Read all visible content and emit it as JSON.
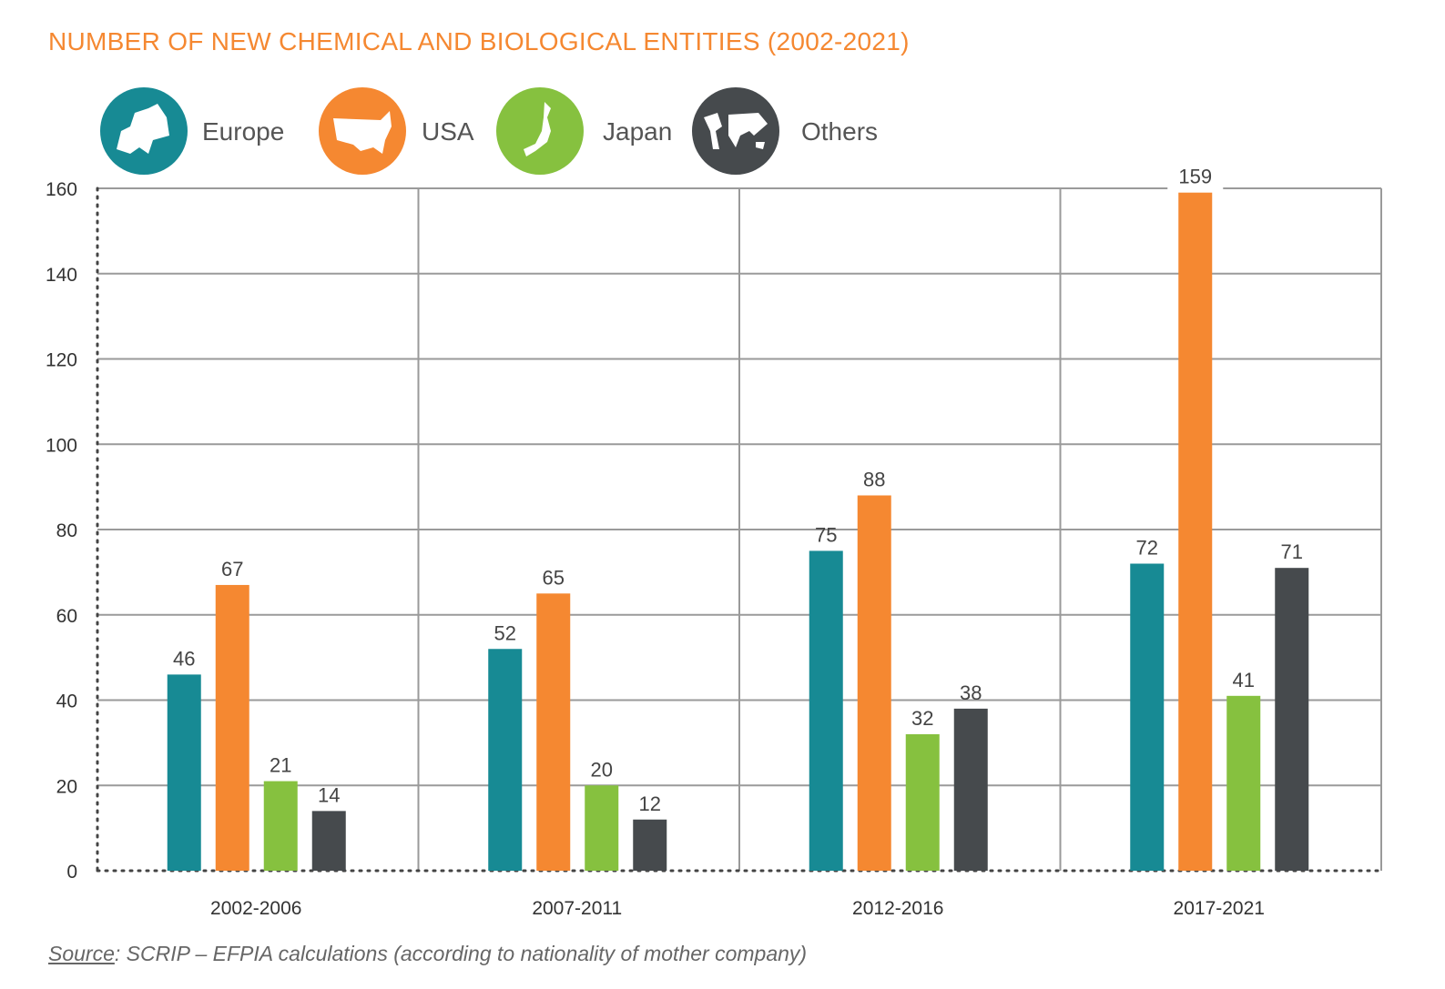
{
  "chart_data": {
    "type": "bar",
    "title": "NUMBER OF NEW CHEMICAL AND BIOLOGICAL ENTITIES (2002-2021)",
    "categories": [
      "2002-2006",
      "2007-2011",
      "2012-2016",
      "2017-2021"
    ],
    "series": [
      {
        "name": "Europe",
        "color": "#178a94",
        "icon": "europe-map-icon",
        "values": [
          46,
          52,
          75,
          72
        ]
      },
      {
        "name": "USA",
        "color": "#f58831",
        "icon": "usa-map-icon",
        "values": [
          67,
          65,
          88,
          159
        ]
      },
      {
        "name": "Japan",
        "color": "#86c13f",
        "icon": "japan-map-icon",
        "values": [
          21,
          20,
          32,
          41
        ]
      },
      {
        "name": "Others",
        "color": "#464a4d",
        "icon": "world-map-icon",
        "values": [
          14,
          12,
          38,
          71
        ]
      }
    ],
    "ylim": [
      0,
      160
    ],
    "yticks": [
      0,
      20,
      40,
      60,
      80,
      100,
      120,
      140,
      160
    ],
    "xlabel": "",
    "ylabel": "",
    "grid": true,
    "legend": "top"
  },
  "source": {
    "label": "Source",
    "text": ": SCRIP – EFPIA calculations (according to nationality of mother company)"
  }
}
